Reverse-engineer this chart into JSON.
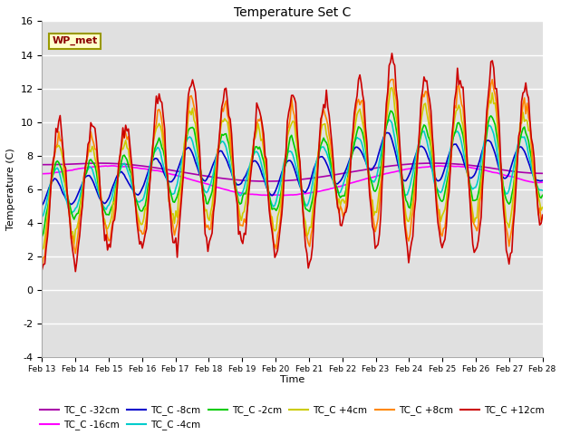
{
  "title": "Temperature Set C",
  "xlabel": "Time",
  "ylabel": "Temperature (C)",
  "ylim": [
    -4,
    16
  ],
  "y_ticks": [
    -4,
    -2,
    0,
    2,
    4,
    6,
    8,
    10,
    12,
    14,
    16
  ],
  "x_tick_labels": [
    "Feb 13",
    "Feb 14",
    "Feb 15",
    "Feb 16",
    "Feb 17",
    "Feb 18",
    "Feb 19",
    "Feb 20",
    "Feb 21",
    "Feb 22",
    "Feb 23",
    "Feb 24",
    "Feb 25",
    "Feb 26",
    "Feb 27",
    "Feb 28"
  ],
  "annotation_text": "WP_met",
  "annotation_box_color": "#ffffcc",
  "annotation_border_color": "#999900",
  "background_color": "#e0e0e0",
  "series": [
    {
      "label": "TC_C -32cm",
      "color": "#aa00aa",
      "lw": 1.2
    },
    {
      "label": "TC_C -16cm",
      "color": "#ff00ff",
      "lw": 1.2
    },
    {
      "label": "TC_C -8cm",
      "color": "#0000cc",
      "lw": 1.2
    },
    {
      "label": "TC_C -4cm",
      "color": "#00cccc",
      "lw": 1.2
    },
    {
      "label": "TC_C -2cm",
      "color": "#00cc00",
      "lw": 1.2
    },
    {
      "label": "TC_C +4cm",
      "color": "#cccc00",
      "lw": 1.2
    },
    {
      "label": "TC_C +8cm",
      "color": "#ff8800",
      "lw": 1.2
    },
    {
      "label": "TC_C +12cm",
      "color": "#cc0000",
      "lw": 1.2
    }
  ]
}
